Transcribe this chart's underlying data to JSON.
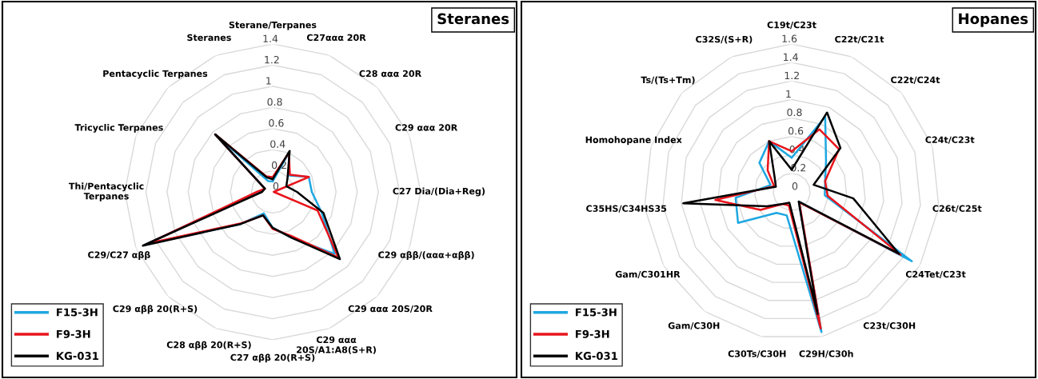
{
  "chart_data": [
    {
      "type": "radar",
      "title": "Steranes",
      "legend": "bottom left",
      "grid": true,
      "ylim": [
        0,
        1.4
      ],
      "yticks": [
        0,
        0.2,
        0.4,
        0.6,
        0.8,
        1,
        1.2,
        1.4
      ],
      "categories": [
        "Sterane/Terpanes",
        "C27ααα 20R",
        "C28 ααα 20R",
        "C29 ααα 20R",
        "C27 Dia/(Dia+Reg)",
        "C29 αββ/(ααα+αββ)",
        "C29 ααα 20S/20R",
        "C29 ααα 20S/A1:A8(S+R)",
        "C27 αββ 20(R+S)",
        "C28 αββ 20(R+S)",
        "C29 αββ 20(R+S)",
        "C29/C27 αββ",
        "Thi/Pentacyclic Terpanes",
        "Tricyclic Terpanes",
        "Pentacyclic Terpanes",
        "Steranes"
      ],
      "series": [
        {
          "name": "F15-3H",
          "color": "#1ea7e1",
          "values": [
            0.1,
            0.4,
            0.22,
            0.37,
            0.37,
            0.5,
            0.83,
            0.47,
            0.34,
            0.22,
            0.43,
            1.3,
            0.13,
            0.08,
            0.77,
            0.11
          ]
        },
        {
          "name": "F9-3H",
          "color": "#e8141b",
          "values": [
            0.14,
            0.4,
            0.23,
            0.37,
            0.01,
            0.46,
            0.88,
            0.45,
            0.35,
            0.24,
            0.42,
            1.27,
            0.15,
            0.08,
            0.77,
            0.16
          ]
        },
        {
          "name": "KG-031",
          "color": "#000000",
          "values": [
            0.12,
            0.42,
            0.2,
            0.14,
            0.23,
            0.52,
            0.9,
            0.47,
            0.34,
            0.24,
            0.43,
            1.33,
            0.1,
            0.08,
            0.77,
            0.15
          ]
        }
      ]
    },
    {
      "type": "radar",
      "title": "Hopanes",
      "legend": "bottom left",
      "grid": true,
      "ylim": [
        0,
        1.6
      ],
      "yticks": [
        0,
        0.2,
        0.4,
        0.6,
        0.8,
        1,
        1.2,
        1.4,
        1.6
      ],
      "categories": [
        "C19t/C23t",
        "C22t/C21t",
        "C22t/C24t",
        "C24t/C23t",
        "C26t/C25t",
        "C24Tet/C23t",
        "C23t/C30H",
        "C29H/C30h",
        "C30Ts/C30H",
        "Gam/C30H",
        "Gam/C301HR",
        "C35HS/C34HS35",
        "Homohopane Index",
        "Ts/(Ts+Tm)",
        "C32S/(S+R)"
      ],
      "series": [
        {
          "name": "F15-3H",
          "color": "#1ea7e1",
          "values": [
            0.37,
            0.89,
            0.5,
            0.38,
            0.36,
            1.5,
            0.13,
            1.55,
            0.26,
            0.28,
            0.67,
            0.61,
            0.24,
            0.47,
            0.6
          ]
        },
        {
          "name": "F9-3H",
          "color": "#e8141b",
          "values": [
            0.44,
            0.74,
            0.69,
            0.38,
            0.39,
            1.36,
            0.14,
            1.51,
            0.15,
            0.16,
            0.39,
            0.83,
            0.2,
            0.35,
            0.6
          ]
        },
        {
          "name": "KG-031",
          "color": "#000000",
          "values": [
            0.24,
            0.94,
            0.71,
            0.25,
            0.67,
            1.34,
            0.13,
            1.35,
            0.12,
            0.16,
            0.31,
            1.18,
            0.18,
            0.25,
            0.6
          ]
        }
      ]
    }
  ]
}
